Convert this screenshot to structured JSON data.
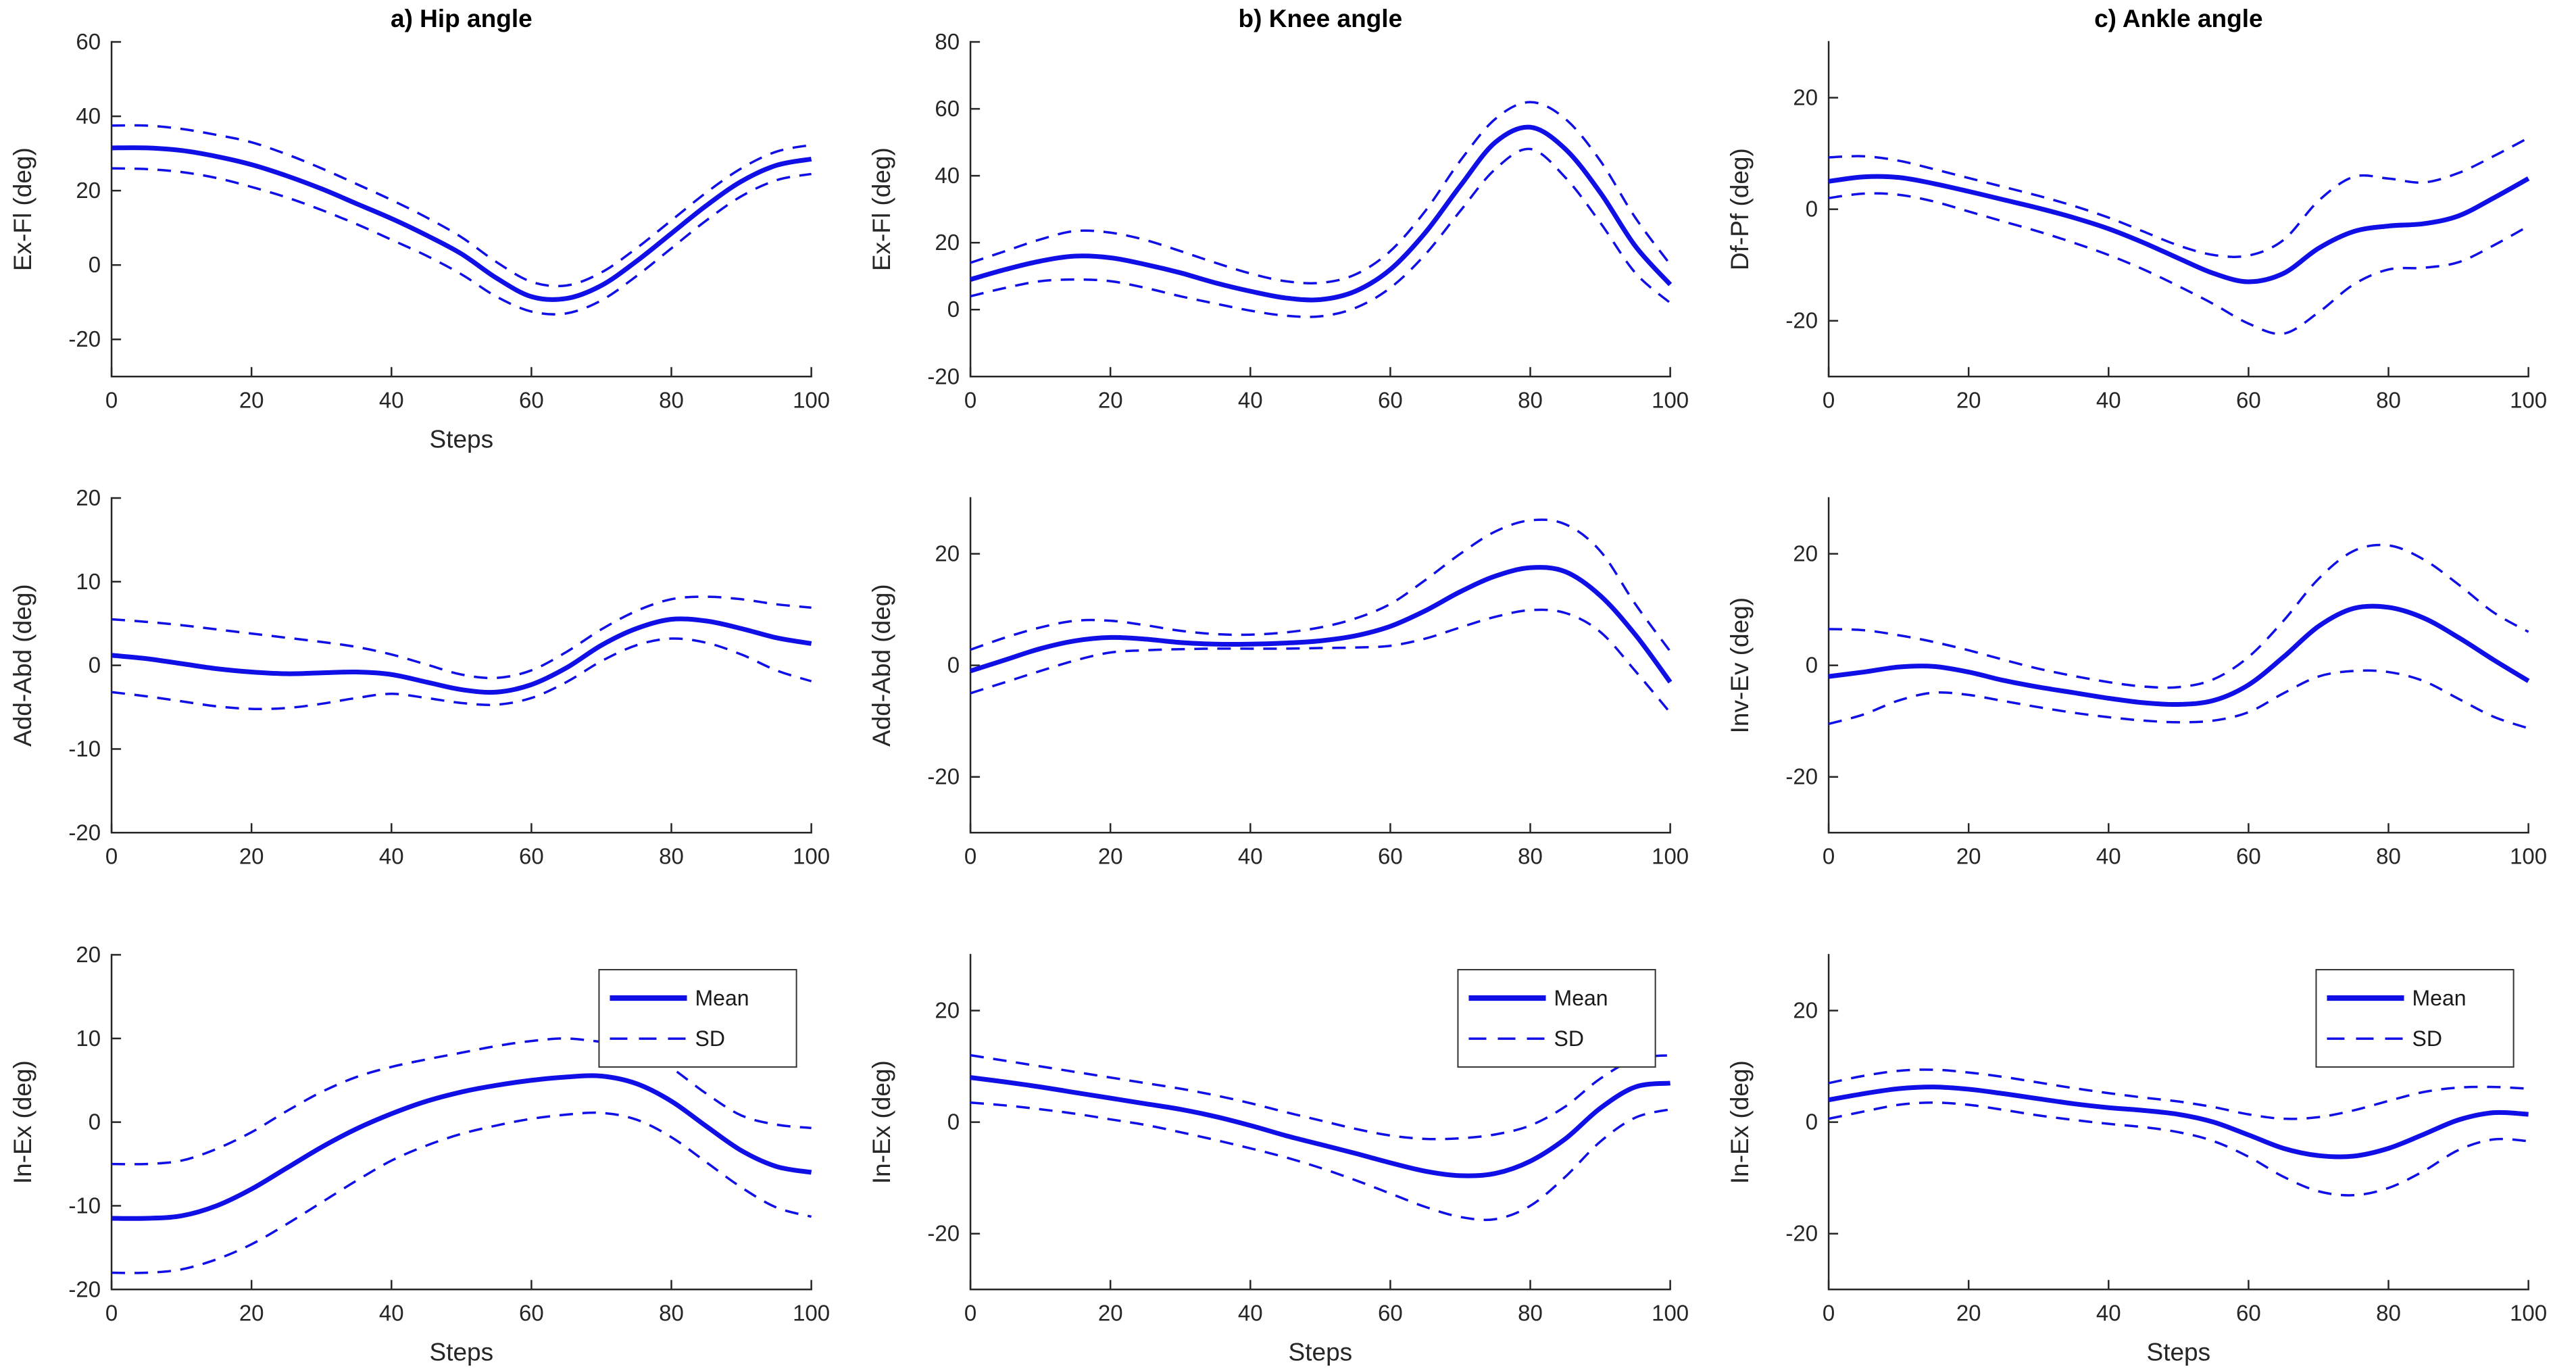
{
  "styles": {
    "background": "#ffffff",
    "line_color": "#0f0fe6",
    "axis_color": "#262626",
    "tick_label_color": "#262626",
    "title_color": "#000000",
    "legend_border_color": "#333333",
    "legend_background": "#ffffff"
  },
  "legend": {
    "mean_label": "Mean",
    "sd_label": "SD"
  },
  "chart_data": [
    {
      "type": "line",
      "title": "a) Hip angle",
      "ylabel": "Ex-Fl (deg)",
      "xlabel": "Steps",
      "legend": false,
      "xlim": [
        0,
        100
      ],
      "ylim": [
        -30,
        60
      ],
      "xticks": [
        0,
        20,
        40,
        60,
        80,
        100
      ],
      "yticks": [
        -20,
        0,
        20,
        40,
        60
      ],
      "x": [
        0,
        5,
        10,
        15,
        20,
        25,
        30,
        35,
        40,
        45,
        50,
        55,
        60,
        65,
        70,
        75,
        80,
        85,
        90,
        95,
        100
      ],
      "series": [
        {
          "name": "Mean",
          "style": "solid",
          "values": [
            31.5,
            31.5,
            30.8,
            29.2,
            27,
            24,
            20.5,
            16.5,
            12.5,
            8,
            3,
            -3.5,
            -8.5,
            -9,
            -5.5,
            1,
            8.5,
            16,
            22.5,
            26.8,
            28.5
          ]
        },
        {
          "name": "SD upper",
          "style": "dashed",
          "values": [
            37.5,
            37.5,
            36.6,
            35,
            33,
            29.8,
            26,
            21.8,
            17.5,
            12.8,
            7.5,
            0.8,
            -4.5,
            -5.5,
            -2,
            4.5,
            12,
            19.5,
            26,
            30.5,
            32.3
          ]
        },
        {
          "name": "SD lower",
          "style": "dashed",
          "values": [
            26,
            25.8,
            25,
            23.4,
            21,
            18.2,
            14.8,
            11,
            6.8,
            2.5,
            -2.5,
            -8.5,
            -12.5,
            -13,
            -9.5,
            -3,
            4.5,
            12,
            18.5,
            22.8,
            24.5
          ]
        }
      ]
    },
    {
      "type": "line",
      "title": "b) Knee angle",
      "ylabel": "Ex-Fl (deg)",
      "xlabel": "",
      "legend": false,
      "xlim": [
        0,
        100
      ],
      "ylim": [
        -20,
        80
      ],
      "xticks": [
        0,
        20,
        40,
        60,
        80,
        100
      ],
      "yticks": [
        -20,
        0,
        20,
        40,
        60,
        80
      ],
      "x": [
        0,
        5,
        10,
        15,
        20,
        25,
        30,
        35,
        40,
        45,
        50,
        55,
        60,
        65,
        70,
        75,
        80,
        85,
        90,
        95,
        100
      ],
      "series": [
        {
          "name": "Mean",
          "style": "solid",
          "values": [
            9,
            12,
            14.5,
            16,
            15.5,
            13.5,
            11,
            8,
            5.5,
            3.5,
            3,
            5.5,
            12,
            23,
            37,
            50,
            54.5,
            48,
            35,
            19,
            7.5
          ]
        },
        {
          "name": "SD upper",
          "style": "dashed",
          "values": [
            14,
            17.5,
            21,
            23.5,
            23,
            20.8,
            17.5,
            14,
            10.8,
            8.5,
            8,
            10.5,
            17.5,
            29.5,
            44.5,
            57,
            62,
            57,
            44.5,
            27.5,
            13.5
          ]
        },
        {
          "name": "SD lower",
          "style": "dashed",
          "values": [
            4,
            6.5,
            8.5,
            9,
            8.5,
            6.5,
            4,
            1.8,
            -0.3,
            -1.8,
            -2,
            0.5,
            6.5,
            16.5,
            29.5,
            42,
            48,
            39.5,
            26,
            11,
            2
          ]
        }
      ]
    },
    {
      "type": "line",
      "title": "c) Ankle angle",
      "ylabel": "Df-Pf (deg)",
      "xlabel": "",
      "legend": false,
      "xlim": [
        0,
        100
      ],
      "ylim": [
        -30,
        30
      ],
      "xticks": [
        0,
        20,
        40,
        60,
        80,
        100
      ],
      "yticks": [
        -20,
        0,
        20
      ],
      "x": [
        0,
        5,
        10,
        15,
        20,
        25,
        30,
        35,
        40,
        45,
        50,
        55,
        60,
        65,
        70,
        75,
        80,
        85,
        90,
        95,
        100
      ],
      "series": [
        {
          "name": "Mean",
          "style": "solid",
          "values": [
            5,
            5.8,
            5.7,
            4.6,
            3.2,
            1.7,
            0.2,
            -1.5,
            -3.5,
            -6,
            -8.8,
            -11.5,
            -13,
            -11.5,
            -7,
            -4,
            -3,
            -2.6,
            -1.2,
            2,
            5.5
          ]
        },
        {
          "name": "SD upper",
          "style": "dashed",
          "values": [
            9.3,
            9.5,
            8.7,
            7.2,
            5.6,
            4,
            2.4,
            0.6,
            -1.5,
            -4,
            -6.5,
            -8.2,
            -8.3,
            -5.5,
            1.5,
            5.8,
            5.5,
            4.8,
            6.5,
            9.5,
            12.8
          ]
        },
        {
          "name": "SD lower",
          "style": "dashed",
          "values": [
            2,
            2.8,
            2.6,
            1.4,
            -0.4,
            -2.2,
            -4,
            -6,
            -8.2,
            -10.8,
            -13.8,
            -17,
            -20.5,
            -22.3,
            -18.5,
            -13.5,
            -10.8,
            -10.5,
            -9.5,
            -6.5,
            -3
          ]
        }
      ]
    },
    {
      "type": "line",
      "title": "",
      "ylabel": "Add-Abd (deg)",
      "xlabel": "",
      "legend": false,
      "xlim": [
        0,
        100
      ],
      "ylim": [
        -20,
        20
      ],
      "xticks": [
        0,
        20,
        40,
        60,
        80,
        100
      ],
      "yticks": [
        -20,
        -10,
        0,
        10,
        20
      ],
      "x": [
        0,
        5,
        10,
        15,
        20,
        25,
        30,
        35,
        40,
        45,
        50,
        55,
        60,
        65,
        70,
        75,
        80,
        85,
        90,
        95,
        100
      ],
      "series": [
        {
          "name": "Mean",
          "style": "solid",
          "values": [
            1.2,
            0.8,
            0.2,
            -0.4,
            -0.8,
            -1,
            -0.9,
            -0.8,
            -1.1,
            -2,
            -2.9,
            -3.2,
            -2.3,
            -0.3,
            2.4,
            4.4,
            5.5,
            5.3,
            4.4,
            3.3,
            2.6
          ]
        },
        {
          "name": "SD upper",
          "style": "dashed",
          "values": [
            5.5,
            5.2,
            4.8,
            4.3,
            3.8,
            3.3,
            2.8,
            2.2,
            1.3,
            0.1,
            -1.1,
            -1.5,
            -0.6,
            1.6,
            4.3,
            6.5,
            7.9,
            8.2,
            7.9,
            7.3,
            6.9
          ]
        },
        {
          "name": "SD lower",
          "style": "dashed",
          "values": [
            -3.2,
            -3.7,
            -4.3,
            -4.9,
            -5.2,
            -5.1,
            -4.6,
            -3.9,
            -3.4,
            -3.9,
            -4.5,
            -4.7,
            -3.9,
            -2,
            0.5,
            2.4,
            3.2,
            2.7,
            1.3,
            -0.6,
            -1.9
          ]
        }
      ]
    },
    {
      "type": "line",
      "title": "",
      "ylabel": "Add-Abd (deg)",
      "xlabel": "",
      "legend": false,
      "xlim": [
        0,
        100
      ],
      "ylim": [
        -30,
        30
      ],
      "xticks": [
        0,
        20,
        40,
        60,
        80,
        100
      ],
      "yticks": [
        -20,
        0,
        20
      ],
      "x": [
        0,
        5,
        10,
        15,
        20,
        25,
        30,
        35,
        40,
        45,
        50,
        55,
        60,
        65,
        70,
        75,
        80,
        85,
        90,
        95,
        100
      ],
      "series": [
        {
          "name": "Mean",
          "style": "solid",
          "values": [
            -1,
            1,
            3,
            4.4,
            5,
            4.7,
            4.1,
            3.8,
            3.8,
            4,
            4.4,
            5.3,
            7,
            9.8,
            13.2,
            16,
            17.5,
            16.8,
            12.5,
            5.5,
            -3
          ]
        },
        {
          "name": "SD upper",
          "style": "dashed",
          "values": [
            2.8,
            5,
            6.8,
            8,
            8,
            7.2,
            6.2,
            5.6,
            5.5,
            5.9,
            6.8,
            8.4,
            11,
            15.3,
            20,
            24,
            26,
            25.3,
            20.5,
            11,
            2.5
          ]
        },
        {
          "name": "SD lower",
          "style": "dashed",
          "values": [
            -5,
            -3,
            -1,
            0.9,
            2.3,
            2.7,
            2.9,
            3,
            3,
            3,
            3.1,
            3.2,
            3.5,
            4.8,
            6.8,
            8.7,
            9.9,
            9.4,
            6,
            -1,
            -8.5
          ]
        }
      ]
    },
    {
      "type": "line",
      "title": "",
      "ylabel": "Inv-Ev (deg)",
      "xlabel": "",
      "legend": false,
      "xlim": [
        0,
        100
      ],
      "ylim": [
        -30,
        30
      ],
      "xticks": [
        0,
        20,
        40,
        60,
        80,
        100
      ],
      "yticks": [
        -20,
        0,
        20
      ],
      "x": [
        0,
        5,
        10,
        15,
        20,
        25,
        30,
        35,
        40,
        45,
        50,
        55,
        60,
        65,
        70,
        75,
        80,
        85,
        90,
        95,
        100
      ],
      "series": [
        {
          "name": "Mean",
          "style": "solid",
          "values": [
            -2,
            -1.2,
            -0.3,
            -0.2,
            -1.2,
            -2.7,
            -3.9,
            -4.9,
            -5.9,
            -6.7,
            -7,
            -6.3,
            -3.5,
            1.5,
            7,
            10.2,
            10.4,
            8.5,
            5,
            1,
            -2.8
          ]
        },
        {
          "name": "SD upper",
          "style": "dashed",
          "values": [
            6.5,
            6.3,
            5.4,
            4.2,
            2.7,
            1,
            -0.6,
            -1.9,
            -3,
            -3.8,
            -3.9,
            -2.5,
            1.5,
            8,
            15.5,
            20.5,
            21.5,
            19,
            14.5,
            9.5,
            6
          ]
        },
        {
          "name": "SD lower",
          "style": "dashed",
          "values": [
            -10.5,
            -8.8,
            -6.3,
            -4.9,
            -5.3,
            -6.4,
            -7.5,
            -8.5,
            -9.3,
            -9.9,
            -10.2,
            -9.9,
            -8.4,
            -5,
            -2,
            -1,
            -1.2,
            -2.8,
            -6,
            -9.2,
            -11.3
          ]
        }
      ]
    },
    {
      "type": "line",
      "title": "",
      "ylabel": "In-Ex (deg)",
      "xlabel": "Steps",
      "legend": true,
      "xlim": [
        0,
        100
      ],
      "ylim": [
        -20,
        20
      ],
      "xticks": [
        0,
        20,
        40,
        60,
        80,
        100
      ],
      "yticks": [
        -20,
        -10,
        0,
        10,
        20
      ],
      "x": [
        0,
        5,
        10,
        15,
        20,
        25,
        30,
        35,
        40,
        45,
        50,
        55,
        60,
        65,
        70,
        75,
        80,
        85,
        90,
        95,
        100
      ],
      "series": [
        {
          "name": "Mean",
          "style": "solid",
          "values": [
            -11.5,
            -11.5,
            -11.2,
            -10,
            -8,
            -5.5,
            -3,
            -0.8,
            1,
            2.5,
            3.6,
            4.4,
            5,
            5.4,
            5.5,
            4.6,
            2.5,
            -0.5,
            -3.4,
            -5.3,
            -6
          ]
        },
        {
          "name": "SD upper",
          "style": "dashed",
          "values": [
            -5,
            -5,
            -4.6,
            -3.2,
            -1.2,
            1.3,
            3.6,
            5.4,
            6.6,
            7.5,
            8.3,
            9.1,
            9.7,
            10,
            9.6,
            9.2,
            6.5,
            3.4,
            0.8,
            -0.3,
            -0.7
          ]
        },
        {
          "name": "SD lower",
          "style": "dashed",
          "values": [
            -18,
            -18,
            -17.6,
            -16.4,
            -14.6,
            -12.2,
            -9.6,
            -7,
            -4.6,
            -2.8,
            -1.4,
            -0.4,
            0.4,
            0.9,
            1.1,
            0.3,
            -1.8,
            -4.8,
            -7.8,
            -10.2,
            -11.3
          ]
        }
      ]
    },
    {
      "type": "line",
      "title": "",
      "ylabel": "In-Ex (deg)",
      "xlabel": "Steps",
      "legend": true,
      "xlim": [
        0,
        100
      ],
      "ylim": [
        -30,
        30
      ],
      "xticks": [
        0,
        20,
        40,
        60,
        80,
        100
      ],
      "yticks": [
        -20,
        0,
        20
      ],
      "x": [
        0,
        5,
        10,
        15,
        20,
        25,
        30,
        35,
        40,
        45,
        50,
        55,
        60,
        65,
        70,
        75,
        80,
        85,
        90,
        95,
        100
      ],
      "series": [
        {
          "name": "Mean",
          "style": "solid",
          "values": [
            8,
            7.2,
            6.3,
            5.3,
            4.3,
            3.3,
            2.3,
            1,
            -0.6,
            -2.4,
            -4,
            -5.6,
            -7.3,
            -8.8,
            -9.6,
            -9.2,
            -7,
            -3,
            2.5,
            6.3,
            7
          ]
        },
        {
          "name": "SD upper",
          "style": "dashed",
          "values": [
            12,
            11,
            10,
            9,
            8,
            7,
            6,
            4.8,
            3.4,
            1.8,
            0.3,
            -1.2,
            -2.4,
            -3,
            -2.9,
            -2.2,
            -0.6,
            2.8,
            7.8,
            11.3,
            12
          ]
        },
        {
          "name": "SD lower",
          "style": "dashed",
          "values": [
            3.5,
            3,
            2.3,
            1.5,
            0.5,
            -0.5,
            -1.8,
            -3.2,
            -4.7,
            -6.3,
            -8.2,
            -10.4,
            -12.8,
            -15.2,
            -17,
            -17.4,
            -15,
            -9.8,
            -3.5,
            0.8,
            2.3
          ]
        }
      ]
    },
    {
      "type": "line",
      "title": "",
      "ylabel": "In-Ex (deg)",
      "xlabel": "Steps",
      "legend": true,
      "xlim": [
        0,
        100
      ],
      "ylim": [
        -30,
        30
      ],
      "xticks": [
        0,
        20,
        40,
        60,
        80,
        100
      ],
      "yticks": [
        -20,
        0,
        20
      ],
      "x": [
        0,
        5,
        10,
        15,
        20,
        25,
        30,
        35,
        40,
        45,
        50,
        55,
        60,
        65,
        70,
        75,
        80,
        85,
        90,
        95,
        100
      ],
      "series": [
        {
          "name": "Mean",
          "style": "solid",
          "values": [
            4,
            5.1,
            6,
            6.3,
            5.9,
            5.1,
            4.2,
            3.3,
            2.6,
            2.1,
            1.4,
            0,
            -2.3,
            -4.7,
            -6,
            -6.1,
            -4.7,
            -2.2,
            0.4,
            1.7,
            1.4
          ]
        },
        {
          "name": "SD upper",
          "style": "dashed",
          "values": [
            7,
            8.3,
            9.2,
            9.4,
            8.9,
            8.1,
            7.1,
            6.1,
            5.2,
            4.4,
            3.7,
            2.7,
            1.4,
            0.6,
            0.9,
            2.1,
            3.8,
            5.4,
            6.2,
            6.3,
            6
          ]
        },
        {
          "name": "SD lower",
          "style": "dashed",
          "values": [
            0.6,
            1.9,
            3.1,
            3.5,
            3.1,
            2.2,
            1.2,
            0.4,
            -0.3,
            -0.9,
            -1.8,
            -3.4,
            -6.2,
            -9.8,
            -12.4,
            -13.1,
            -11.8,
            -8.8,
            -5,
            -3.1,
            -3.4
          ]
        }
      ]
    }
  ]
}
